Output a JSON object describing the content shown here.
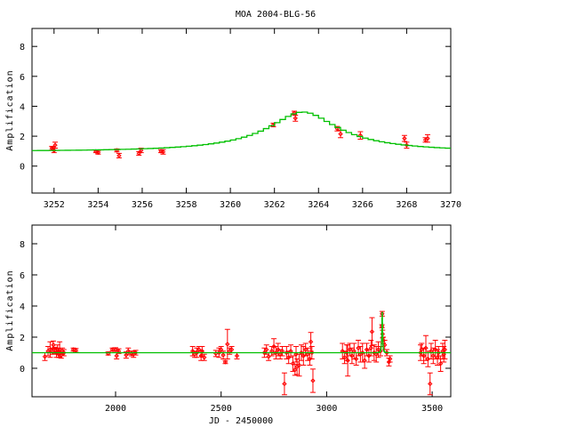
{
  "title": "MOA 2004-BLG-56",
  "colors": {
    "data": "#ff0000",
    "model": "#00c000",
    "axis": "#000000",
    "alt_data": "#000000"
  },
  "chart_data": [
    {
      "type": "scatter",
      "name": "zoom-panel",
      "title": "MOA 2004-BLG-56",
      "xlabel": "",
      "ylabel": "Amplification",
      "xlim": [
        3251,
        3270
      ],
      "ylim": [
        -1.8,
        9.2
      ],
      "xticks": [
        3252,
        3254,
        3256,
        3258,
        3260,
        3262,
        3264,
        3266,
        3268,
        3270
      ],
      "yticks": [
        0,
        2,
        4,
        6,
        8
      ],
      "grid": false,
      "model": {
        "t0": 3263.3,
        "u0": 0.285,
        "tE": 5.3,
        "step": 0.25
      },
      "points": [
        [
          3251.9,
          1.2,
          0.12
        ],
        [
          3251.95,
          1.15,
          0.1
        ],
        [
          3252.0,
          1.05,
          0.15
        ],
        [
          3252.05,
          1.4,
          0.2
        ],
        [
          3253.9,
          0.98,
          0.08
        ],
        [
          3254.0,
          0.9,
          0.1
        ],
        [
          3254.85,
          1.05,
          0.1
        ],
        [
          3254.95,
          0.7,
          0.15
        ],
        [
          3255.85,
          0.85,
          0.12
        ],
        [
          3255.95,
          1.05,
          0.15
        ],
        [
          3256.85,
          1.0,
          0.1
        ],
        [
          3256.95,
          0.95,
          0.15
        ],
        [
          3261.95,
          2.75,
          0.12
        ],
        [
          3262.9,
          3.55,
          0.12
        ],
        [
          3262.95,
          3.2,
          0.2
        ],
        [
          3264.85,
          2.5,
          0.15
        ],
        [
          3265.0,
          2.15,
          0.25
        ],
        [
          3265.9,
          2.05,
          0.25
        ],
        [
          3267.9,
          1.85,
          0.2
        ],
        [
          3268.0,
          1.4,
          0.2
        ],
        [
          3268.85,
          1.75,
          0.15
        ],
        [
          3268.95,
          1.85,
          0.25
        ]
      ]
    },
    {
      "type": "scatter",
      "name": "full-panel",
      "title": "",
      "xlabel": "JD - 2450000",
      "ylabel": "Amplification",
      "xlim": [
        1604,
        3588
      ],
      "ylim": [
        -1.83,
        9.2
      ],
      "xticks": [
        2000,
        2500,
        3000,
        3500
      ],
      "yticks": [
        0,
        2,
        4,
        6,
        8
      ],
      "grid": false,
      "model": {
        "t0": 3263.3,
        "u0": 0.285,
        "tE": 5.3,
        "step": 1
      },
      "points": [
        [
          1665,
          0.75,
          0.25
        ],
        [
          1680,
          1.1,
          0.3
        ],
        [
          1690,
          1.2,
          0.5
        ],
        [
          1700,
          1.1,
          0.2
        ],
        [
          1705,
          1.5,
          0.25
        ],
        [
          1712,
          1.15,
          0.2
        ],
        [
          1720,
          1.0,
          0.3
        ],
        [
          1725,
          1.2,
          0.3
        ],
        [
          1730,
          0.9,
          0.2
        ],
        [
          1735,
          1.2,
          0.5
        ],
        [
          1742,
          0.85,
          0.2
        ],
        [
          1748,
          1.1,
          0.2
        ],
        [
          1755,
          1.0,
          0.2
        ],
        [
          1800,
          1.2,
          0.1
        ],
        [
          1812,
          1.15,
          0.12
        ],
        [
          1965,
          0.95,
          0.1
        ],
        [
          1985,
          1.2,
          0.1
        ],
        [
          2000,
          1.2,
          0.12
        ],
        [
          2005,
          0.8,
          0.2
        ],
        [
          2015,
          1.1,
          0.15
        ],
        [
          2050,
          0.85,
          0.2
        ],
        [
          2060,
          1.1,
          0.2
        ],
        [
          2075,
          0.95,
          0.15
        ],
        [
          2085,
          0.9,
          0.2
        ],
        [
          2095,
          1.0,
          0.15
        ],
        [
          2365,
          1.1,
          0.3
        ],
        [
          2375,
          0.9,
          0.2
        ],
        [
          2385,
          1.0,
          0.3
        ],
        [
          2395,
          1.2,
          0.2
        ],
        [
          2405,
          0.8,
          0.3
        ],
        [
          2410,
          1.1,
          0.3
        ],
        [
          2420,
          0.7,
          0.2
        ],
        [
          2475,
          0.95,
          0.2
        ],
        [
          2490,
          1.0,
          0.3
        ],
        [
          2500,
          1.2,
          0.2
        ],
        [
          2510,
          0.85,
          0.25
        ],
        [
          2520,
          0.4,
          0.1
        ],
        [
          2530,
          1.55,
          0.95
        ],
        [
          2540,
          1.1,
          0.2
        ],
        [
          2550,
          1.2,
          0.2
        ],
        [
          2575,
          0.8,
          0.2
        ],
        [
          2705,
          1.0,
          0.3
        ],
        [
          2715,
          1.2,
          0.3
        ],
        [
          2725,
          0.75,
          0.25
        ],
        [
          2740,
          1.1,
          0.3
        ],
        [
          2750,
          1.4,
          0.5
        ],
        [
          2760,
          1.0,
          0.4
        ],
        [
          2770,
          1.2,
          0.4
        ],
        [
          2780,
          0.9,
          0.3
        ],
        [
          2790,
          1.1,
          0.3
        ],
        [
          2800,
          -1.0,
          0.7
        ],
        [
          2810,
          1.0,
          0.4
        ],
        [
          2820,
          0.7,
          0.4
        ],
        [
          2830,
          1.1,
          0.4
        ],
        [
          2840,
          0.3,
          0.5
        ],
        [
          2850,
          -0.1,
          0.35
        ],
        [
          2855,
          0.9,
          0.5
        ],
        [
          2860,
          0.1,
          0.5
        ],
        [
          2870,
          0.2,
          0.7
        ],
        [
          2880,
          1.0,
          0.5
        ],
        [
          2890,
          0.8,
          0.6
        ],
        [
          2900,
          1.2,
          0.4
        ],
        [
          2910,
          0.9,
          0.4
        ],
        [
          2920,
          0.6,
          0.4
        ],
        [
          2925,
          1.7,
          0.6
        ],
        [
          2930,
          1.0,
          0.4
        ],
        [
          2935,
          -0.8,
          0.75
        ],
        [
          3075,
          1.1,
          0.5
        ],
        [
          3085,
          0.7,
          0.4
        ],
        [
          3095,
          1.0,
          0.5
        ],
        [
          3100,
          0.5,
          1.0
        ],
        [
          3110,
          1.2,
          0.4
        ],
        [
          3120,
          0.8,
          0.5
        ],
        [
          3130,
          1.1,
          0.5
        ],
        [
          3140,
          0.6,
          0.4
        ],
        [
          3150,
          1.3,
          0.5
        ],
        [
          3160,
          0.9,
          0.5
        ],
        [
          3170,
          1.0,
          0.6
        ],
        [
          3180,
          0.5,
          0.5
        ],
        [
          3190,
          1.2,
          0.4
        ],
        [
          3200,
          0.8,
          0.4
        ],
        [
          3210,
          1.3,
          0.5
        ],
        [
          3215,
          2.35,
          0.9
        ],
        [
          3225,
          1.0,
          0.5
        ],
        [
          3235,
          0.9,
          0.5
        ],
        [
          3245,
          1.2,
          0.5
        ],
        [
          3255,
          1.1,
          0.3
        ],
        [
          3262,
          2.7,
          0.1
        ],
        [
          3263,
          3.5,
          0.15
        ],
        [
          3265,
          2.2,
          0.25
        ],
        [
          3268,
          1.8,
          0.2
        ],
        [
          3275,
          1.5,
          0.3
        ],
        [
          3285,
          1.0,
          0.2
        ],
        [
          3295,
          0.4,
          0.25
        ],
        [
          3300,
          0.6,
          0.2
        ],
        [
          3445,
          1.0,
          0.5
        ],
        [
          3450,
          1.2,
          0.4
        ],
        [
          3460,
          0.8,
          0.5
        ],
        [
          3470,
          1.3,
          0.8
        ],
        [
          3480,
          0.6,
          0.5
        ],
        [
          3490,
          -1.0,
          0.7
        ],
        [
          3495,
          1.1,
          0.5
        ],
        [
          3505,
          0.8,
          0.5
        ],
        [
          3515,
          1.2,
          0.6
        ],
        [
          3525,
          0.7,
          0.5
        ],
        [
          3530,
          1.0,
          0.4
        ],
        [
          3540,
          0.3,
          0.5
        ],
        [
          3550,
          1.1,
          0.5
        ],
        [
          3555,
          0.9,
          0.5
        ],
        [
          3560,
          1.2,
          0.6
        ]
      ]
    }
  ]
}
